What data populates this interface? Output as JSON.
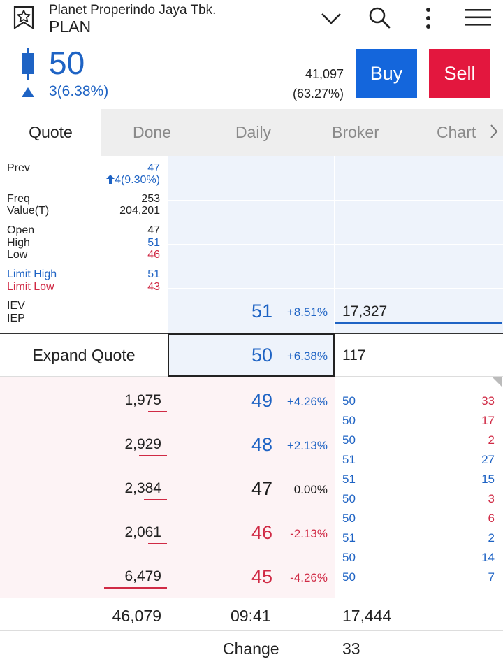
{
  "header": {
    "company_name": "Planet Properindo Jaya Tbk.",
    "ticker": "PLAN",
    "icons": [
      "star-icon",
      "chevron-down-icon",
      "search-icon",
      "more-vertical-icon",
      "menu-icon"
    ]
  },
  "price": {
    "last": "50",
    "change": "3(6.38%)",
    "volume": "41,097",
    "volume_pct": "(63.27%)",
    "buy_label": "Buy",
    "sell_label": "Sell",
    "colors": {
      "up": "#1e63c4",
      "down": "#d02a45",
      "buy": "#1466dc",
      "sell": "#e3173e"
    }
  },
  "tabs": [
    "Quote",
    "Done",
    "Daily",
    "Broker",
    "Chart"
  ],
  "quote": {
    "prev_label": "Prev",
    "prev_value": "47",
    "prev_change": "4(9.30%)",
    "freq_label": "Freq",
    "freq_value": "253",
    "value_label": "Value(T)",
    "value_value": "204,201",
    "open_label": "Open",
    "open_value": "47",
    "high_label": "High",
    "high_value": "51",
    "low_label": "Low",
    "low_value": "46",
    "limit_high_label": "Limit High",
    "limit_high_value": "51",
    "limit_low_label": "Limit Low",
    "limit_low_value": "43",
    "iev_label": "IEV",
    "iep_label": "IEP"
  },
  "orderbook": {
    "offers": [
      {
        "price": "51",
        "pct": "+8.51%",
        "lot": "17,327"
      }
    ],
    "current": {
      "price": "50",
      "pct": "+6.38%",
      "lot": "117"
    },
    "expand_label": "Expand Quote",
    "bids": [
      {
        "lot": "1,975",
        "price": "49",
        "pct": "+4.26%",
        "tone": "up"
      },
      {
        "lot": "2,929",
        "price": "48",
        "pct": "+2.13%",
        "tone": "up"
      },
      {
        "lot": "2,384",
        "price": "47",
        "pct": "0.00%",
        "tone": "flat"
      },
      {
        "lot": "2,061",
        "price": "46",
        "pct": "-2.13%",
        "tone": "down"
      },
      {
        "lot": "6,479",
        "price": "45",
        "pct": "-4.26%",
        "tone": "down"
      }
    ]
  },
  "trades": [
    {
      "price": "50",
      "lot": "33"
    },
    {
      "price": "50",
      "lot": "17"
    },
    {
      "price": "50",
      "lot": "2"
    },
    {
      "price": "51",
      "lot": "27"
    },
    {
      "price": "51",
      "lot": "15"
    },
    {
      "price": "50",
      "lot": "3"
    },
    {
      "price": "50",
      "lot": "6"
    },
    {
      "price": "51",
      "lot": "2"
    },
    {
      "price": "50",
      "lot": "14"
    },
    {
      "price": "50",
      "lot": "7"
    }
  ],
  "totals": {
    "bid_total": "46,079",
    "time": "09:41",
    "offer_total": "17,444",
    "change_label": "Change",
    "change_value": "33"
  }
}
